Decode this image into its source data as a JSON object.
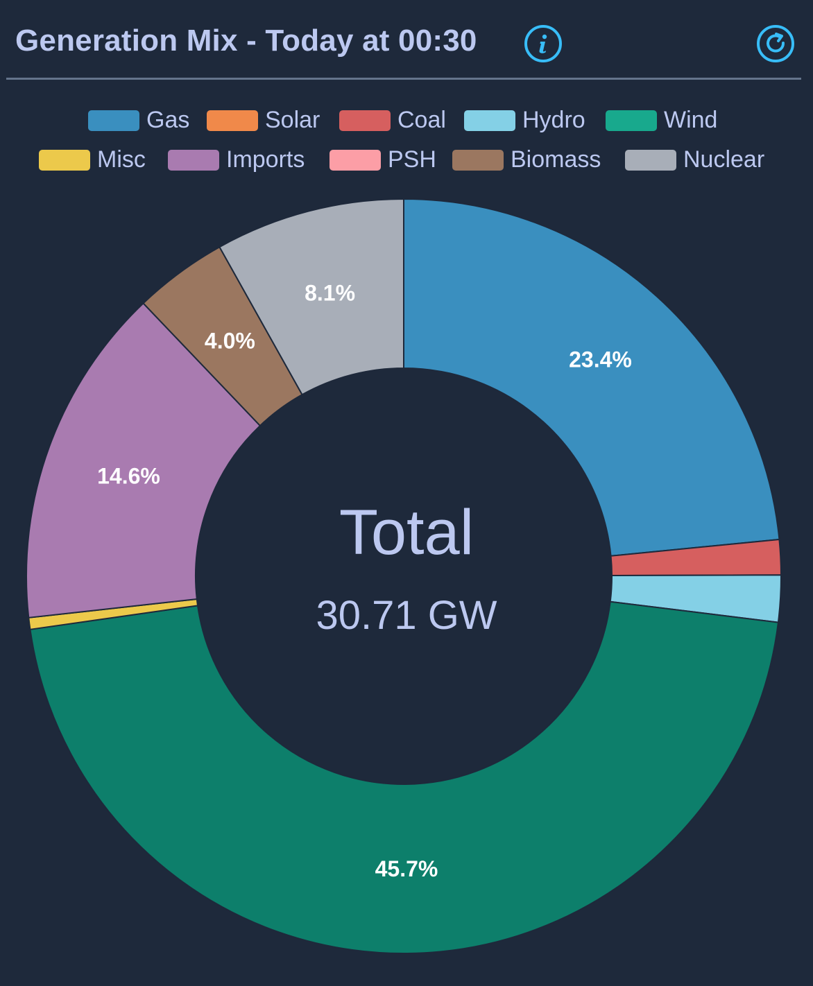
{
  "header": {
    "title": "Generation Mix - Today at 00:30",
    "info_icon": "info-icon",
    "refresh_icon": "refresh-icon"
  },
  "center": {
    "title": "Total",
    "value": "30.71 GW"
  },
  "chart_data": {
    "type": "pie",
    "variant": "donut",
    "legend_position": "top",
    "categories": [
      "Gas",
      "Solar",
      "Coal",
      "Hydro",
      "Wind",
      "Misc",
      "Imports",
      "PSH",
      "Biomass",
      "Nuclear"
    ],
    "values": [
      23.4,
      0.0,
      1.5,
      2.0,
      45.7,
      0.5,
      14.6,
      0.0,
      4.0,
      8.1
    ],
    "data_labels": [
      "23.4%",
      "",
      "",
      "",
      "45.7%",
      "",
      "14.6%",
      "",
      "4.0%",
      "8.1%"
    ],
    "colors": [
      "#3a8fbf",
      "#f0894a",
      "#d65f5f",
      "#84d0e6",
      "#0d7f6b",
      "#ecc94b",
      "#a97bb0",
      "#fc9ea6",
      "#9b7760",
      "#a8aeb8"
    ],
    "legend_colors": [
      "#3a8fbf",
      "#f0894a",
      "#d65f5f",
      "#84d0e6",
      "#18a98d",
      "#ecc94b",
      "#a97bb0",
      "#fc9ea6",
      "#9b7760",
      "#a8aeb8"
    ]
  }
}
